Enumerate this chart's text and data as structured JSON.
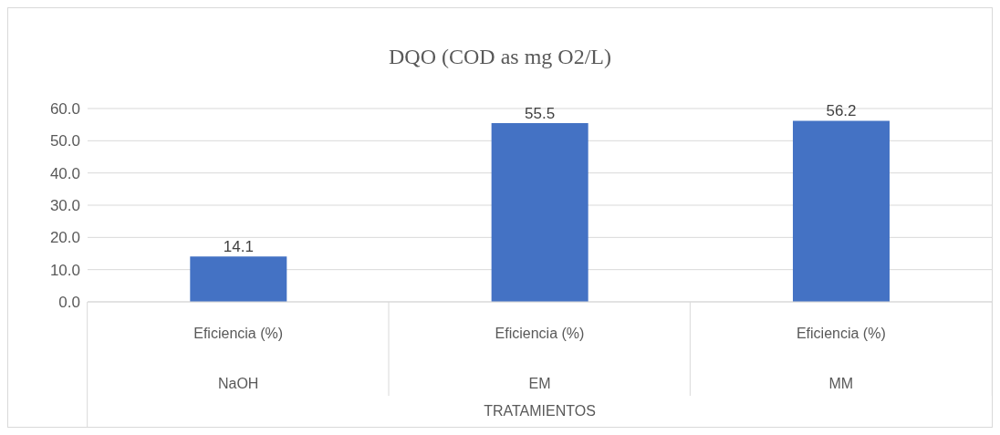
{
  "chart_data": {
    "type": "bar",
    "title": "DQO (COD as mg O2/L)",
    "categories": [
      "Eficiencia (%)\nNaOH",
      "Eficiencia (%)\nEM",
      "Eficiencia (%)\nMM"
    ],
    "values": [
      14.1,
      55.5,
      56.2
    ],
    "color": "#4472c4",
    "annotations": [
      "TRATAMIENTOS"
    ],
    "ylim": [
      0,
      60
    ],
    "yticks": [
      {
        "value": 0,
        "label": "0.0"
      },
      {
        "value": 10,
        "label": "10.0"
      },
      {
        "value": 20,
        "label": "20.0"
      },
      {
        "value": 30,
        "label": "30.0"
      },
      {
        "value": 40,
        "label": "40.0"
      },
      {
        "value": 50,
        "label": "50.0"
      },
      {
        "value": 60,
        "label": "60.0"
      }
    ],
    "grid": "y",
    "data_labels": true,
    "legend": false
  }
}
